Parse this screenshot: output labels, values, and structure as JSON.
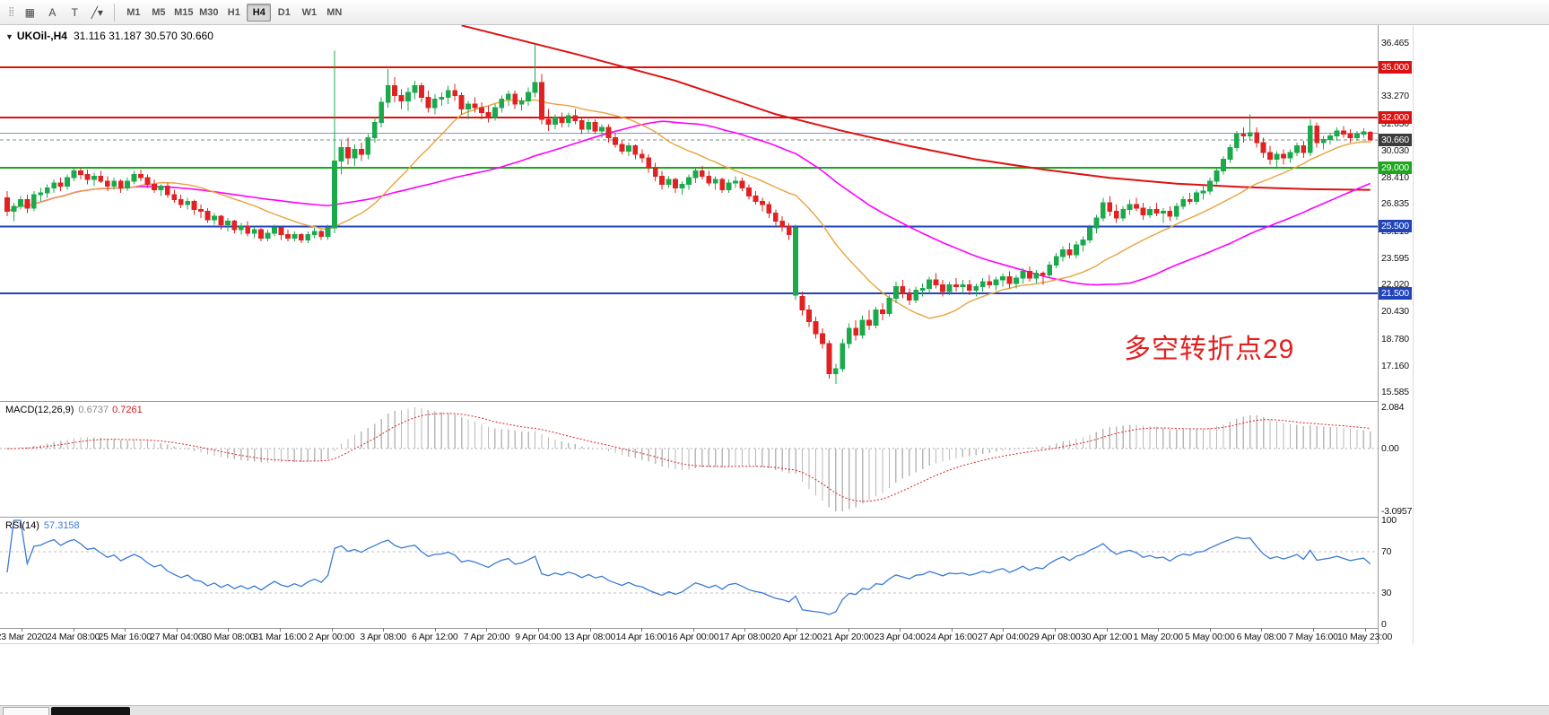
{
  "toolbar": {
    "tools": [
      {
        "name": "toolbar-grip",
        "glyph": "⣿"
      },
      {
        "name": "grid-tool-icon",
        "glyph": "▦"
      },
      {
        "name": "cursor-tool-icon",
        "glyph": "A"
      },
      {
        "name": "text-tool-icon",
        "glyph": "T"
      },
      {
        "name": "shapes-tool-icon",
        "glyph": "╱▾"
      }
    ],
    "timeframes": [
      "M1",
      "M5",
      "M15",
      "M30",
      "H1",
      "H4",
      "D1",
      "W1",
      "MN"
    ],
    "active_timeframe": "H4"
  },
  "chart": {
    "symbol_period": "UKOil-,H4",
    "ohlc": "31.116 31.187 30.570 30.660",
    "collapse_icon": "▼"
  },
  "annotation": {
    "text": "多空转折点29",
    "color": "#e21f1f"
  },
  "indicators": {
    "macd": {
      "name": "MACD(12,26,9)",
      "value_main": "0.6737",
      "value_signal": "0.7261"
    },
    "rsi": {
      "name": "RSI(14)",
      "value": "57.3158"
    }
  },
  "chart_data": {
    "type": "candlestick",
    "symbol": "UKOil-",
    "period": "H4",
    "colors": {
      "up": "#1ba94c",
      "down": "#e02222",
      "ma_fast": "#e8a33d",
      "ma_mid": "#ff00ff",
      "ma_slow": "#dd1111",
      "macd_hist": "#b8b8b8",
      "macd_signal": "#dd2222",
      "rsi": "#3a7bd5"
    },
    "hlines": [
      {
        "price": 35.0,
        "color": "#dd1111",
        "width": 2
      },
      {
        "price": 32.0,
        "color": "#dd1111",
        "width": 2
      },
      {
        "price": 31.05,
        "color": "#7799cc",
        "width": 1
      },
      {
        "price": 30.66,
        "color": "#888888",
        "width": 1,
        "dash": "4,3"
      },
      {
        "price": 29.0,
        "color": "#1ca81c",
        "width": 2
      },
      {
        "price": 25.5,
        "color": "#2244bb",
        "width": 2
      },
      {
        "price": 21.5,
        "color": "#2244bb",
        "width": 2
      }
    ],
    "y_labels": [
      "36.465",
      "33.270",
      "31.650",
      "30.030",
      "28.410",
      "26.835",
      "25.215",
      "23.595",
      "22.020",
      "20.430",
      "18.780",
      "17.160",
      "15.585"
    ],
    "y_badges": [
      {
        "text": "35.000",
        "price": 35.0,
        "bg": "#dd1111"
      },
      {
        "text": "32.000",
        "price": 32.0,
        "bg": "#dd1111"
      },
      {
        "text": "30.660",
        "price": 30.66,
        "bg": "#3c3c3c"
      },
      {
        "text": "29.000",
        "price": 29.0,
        "bg": "#1ca81c"
      },
      {
        "text": "25.500",
        "price": 25.5,
        "bg": "#2244bb"
      },
      {
        "text": "21.500",
        "price": 21.5,
        "bg": "#2244bb"
      }
    ],
    "macd_axis": {
      "max_label": "2.084",
      "zero_label": "0.00",
      "min_label": "-3.0957"
    },
    "rsi_axis": {
      "labels": [
        "100",
        "70",
        "30",
        "0"
      ],
      "values": [
        100,
        70,
        30,
        0
      ],
      "levels": [
        70,
        30
      ]
    },
    "x_labels": [
      "23 Mar 2020",
      "24 Mar 08:00",
      "25 Mar 16:00",
      "27 Mar 04:00",
      "30 Mar 08:00",
      "31 Mar 16:00",
      "2 Apr 00:00",
      "3 Apr 08:00",
      "6 Apr 12:00",
      "7 Apr 20:00",
      "9 Apr 04:00",
      "13 Apr 08:00",
      "14 Apr 16:00",
      "16 Apr 00:00",
      "17 Apr 08:00",
      "20 Apr 12:00",
      "21 Apr 20:00",
      "23 Apr 04:00",
      "24 Apr 16:00",
      "27 Apr 04:00",
      "29 Apr 08:00",
      "30 Apr 12:00",
      "1 May 20:00",
      "5 May 00:00",
      "6 May 08:00",
      "7 May 16:00",
      "10 May 23:00"
    ],
    "ma_red": [
      [
        68,
        37.5
      ],
      [
        85,
        35.8
      ],
      [
        100,
        34.2
      ],
      [
        115,
        32.2
      ],
      [
        125,
        31.2
      ],
      [
        135,
        30.3
      ],
      [
        145,
        29.5
      ],
      [
        155,
        28.9
      ],
      [
        165,
        28.4
      ],
      [
        175,
        28.05
      ],
      [
        185,
        27.85
      ],
      [
        195,
        27.72
      ],
      [
        204,
        27.68
      ]
    ],
    "ma_periods": {
      "fast": 20,
      "mid": 50
    },
    "candles": [
      [
        27.2,
        27.6,
        26.1,
        26.4
      ],
      [
        26.4,
        26.9,
        25.8,
        26.7
      ],
      [
        26.7,
        27.3,
        26.5,
        27.1
      ],
      [
        27.1,
        27.4,
        26.3,
        26.6
      ],
      [
        26.6,
        27.6,
        26.4,
        27.4
      ],
      [
        27.4,
        27.8,
        27.0,
        27.5
      ],
      [
        27.5,
        28.0,
        27.2,
        27.8
      ],
      [
        27.8,
        28.3,
        27.5,
        28.1
      ],
      [
        28.1,
        28.4,
        27.6,
        27.9
      ],
      [
        27.9,
        28.6,
        27.7,
        28.4
      ],
      [
        28.4,
        29.0,
        28.2,
        28.8
      ],
      [
        28.8,
        29.0,
        28.3,
        28.6
      ],
      [
        28.6,
        28.9,
        28.0,
        28.3
      ],
      [
        28.3,
        28.7,
        27.9,
        28.5
      ],
      [
        28.5,
        28.8,
        28.1,
        28.2
      ],
      [
        28.2,
        28.5,
        27.6,
        27.9
      ],
      [
        27.9,
        28.4,
        27.7,
        28.2
      ],
      [
        28.2,
        28.3,
        27.5,
        27.8
      ],
      [
        27.8,
        28.4,
        27.6,
        28.2
      ],
      [
        28.2,
        28.8,
        28.0,
        28.6
      ],
      [
        28.6,
        28.9,
        28.2,
        28.4
      ],
      [
        28.4,
        28.6,
        27.8,
        28.0
      ],
      [
        28.0,
        28.3,
        27.5,
        27.7
      ],
      [
        27.7,
        28.0,
        27.3,
        27.9
      ],
      [
        27.9,
        28.1,
        27.2,
        27.4
      ],
      [
        27.4,
        27.7,
        26.9,
        27.1
      ],
      [
        27.1,
        27.4,
        26.6,
        26.8
      ],
      [
        26.8,
        27.2,
        26.5,
        27.0
      ],
      [
        27.0,
        27.1,
        26.2,
        26.5
      ],
      [
        26.5,
        26.8,
        26.0,
        26.4
      ],
      [
        26.4,
        26.6,
        25.7,
        25.9
      ],
      [
        25.9,
        26.3,
        25.6,
        26.1
      ],
      [
        26.1,
        26.2,
        25.3,
        25.6
      ],
      [
        25.6,
        26.0,
        25.2,
        25.8
      ],
      [
        25.8,
        25.9,
        25.1,
        25.3
      ],
      [
        25.3,
        25.7,
        25.0,
        25.5
      ],
      [
        25.5,
        25.8,
        24.9,
        25.1
      ],
      [
        25.1,
        25.5,
        24.8,
        25.3
      ],
      [
        25.3,
        25.4,
        24.6,
        24.8
      ],
      [
        24.8,
        25.3,
        24.6,
        25.1
      ],
      [
        25.1,
        25.6,
        24.9,
        25.4
      ],
      [
        25.4,
        25.5,
        24.7,
        25.0
      ],
      [
        25.0,
        25.3,
        24.6,
        24.8
      ],
      [
        24.8,
        25.2,
        24.6,
        25.0
      ],
      [
        25.0,
        25.1,
        24.5,
        24.7
      ],
      [
        24.7,
        25.2,
        24.5,
        25.0
      ],
      [
        25.0,
        25.4,
        24.8,
        25.2
      ],
      [
        25.2,
        25.3,
        24.7,
        24.9
      ],
      [
        24.9,
        25.6,
        24.7,
        25.4
      ],
      [
        25.4,
        36.0,
        25.1,
        29.4
      ],
      [
        29.4,
        30.6,
        28.6,
        30.2
      ],
      [
        30.2,
        30.8,
        29.2,
        29.6
      ],
      [
        29.6,
        30.4,
        29.1,
        30.1
      ],
      [
        30.1,
        30.5,
        29.4,
        29.8
      ],
      [
        29.8,
        31.0,
        29.5,
        30.8
      ],
      [
        30.8,
        32.0,
        30.5,
        31.7
      ],
      [
        31.7,
        33.2,
        31.4,
        32.9
      ],
      [
        32.9,
        34.9,
        32.6,
        33.9
      ],
      [
        33.9,
        34.4,
        32.9,
        33.3
      ],
      [
        33.3,
        33.7,
        32.5,
        33.0
      ],
      [
        33.0,
        33.8,
        32.4,
        33.5
      ],
      [
        33.5,
        34.2,
        33.1,
        33.9
      ],
      [
        33.9,
        34.1,
        32.9,
        33.2
      ],
      [
        33.2,
        33.6,
        32.3,
        32.6
      ],
      [
        32.6,
        33.4,
        32.2,
        33.1
      ],
      [
        33.1,
        33.5,
        32.7,
        33.2
      ],
      [
        33.2,
        33.9,
        32.8,
        33.6
      ],
      [
        33.6,
        34.0,
        33.0,
        33.3
      ],
      [
        33.3,
        33.5,
        32.2,
        32.5
      ],
      [
        32.5,
        33.0,
        31.9,
        32.8
      ],
      [
        32.8,
        33.2,
        32.3,
        32.6
      ],
      [
        32.6,
        32.9,
        31.9,
        32.3
      ],
      [
        32.3,
        32.7,
        31.7,
        32.0
      ],
      [
        32.0,
        32.8,
        31.8,
        32.6
      ],
      [
        32.6,
        33.3,
        32.3,
        33.1
      ],
      [
        33.1,
        33.6,
        32.7,
        33.4
      ],
      [
        33.4,
        33.6,
        32.5,
        32.8
      ],
      [
        32.8,
        33.2,
        32.4,
        33.0
      ],
      [
        33.0,
        33.8,
        32.7,
        33.5
      ],
      [
        33.5,
        36.4,
        33.2,
        34.1
      ],
      [
        34.1,
        34.6,
        31.6,
        31.9
      ],
      [
        31.9,
        32.5,
        31.2,
        31.6
      ],
      [
        31.6,
        32.2,
        31.3,
        32.0
      ],
      [
        32.0,
        32.3,
        31.4,
        31.7
      ],
      [
        31.7,
        32.3,
        31.4,
        32.1
      ],
      [
        32.1,
        32.5,
        31.6,
        31.8
      ],
      [
        31.8,
        32.0,
        31.0,
        31.3
      ],
      [
        31.3,
        31.9,
        31.1,
        31.7
      ],
      [
        31.7,
        31.9,
        31.0,
        31.2
      ],
      [
        31.2,
        31.6,
        30.8,
        31.4
      ],
      [
        31.4,
        31.6,
        30.5,
        30.8
      ],
      [
        30.8,
        31.1,
        30.2,
        30.4
      ],
      [
        30.4,
        30.7,
        29.8,
        30.0
      ],
      [
        30.0,
        30.5,
        29.7,
        30.3
      ],
      [
        30.3,
        30.4,
        29.5,
        29.8
      ],
      [
        29.8,
        30.1,
        29.3,
        29.6
      ],
      [
        29.6,
        29.8,
        28.7,
        29.0
      ],
      [
        29.0,
        29.3,
        28.2,
        28.5
      ],
      [
        28.5,
        28.8,
        27.7,
        28.0
      ],
      [
        28.0,
        28.5,
        27.8,
        28.3
      ],
      [
        28.3,
        28.4,
        27.5,
        27.8
      ],
      [
        27.8,
        28.2,
        27.4,
        28.0
      ],
      [
        28.0,
        28.6,
        27.7,
        28.4
      ],
      [
        28.4,
        29.0,
        28.1,
        28.8
      ],
      [
        28.8,
        29.1,
        28.3,
        28.5
      ],
      [
        28.5,
        28.8,
        27.9,
        28.1
      ],
      [
        28.1,
        28.5,
        27.7,
        28.3
      ],
      [
        28.3,
        28.4,
        27.5,
        27.7
      ],
      [
        27.7,
        28.3,
        27.5,
        28.1
      ],
      [
        28.1,
        28.5,
        27.8,
        28.2
      ],
      [
        28.2,
        28.4,
        27.6,
        27.8
      ],
      [
        27.8,
        28.0,
        27.1,
        27.3
      ],
      [
        27.3,
        27.6,
        26.8,
        27.0
      ],
      [
        27.0,
        27.2,
        26.4,
        26.8
      ],
      [
        26.8,
        27.0,
        26.0,
        26.3
      ],
      [
        26.3,
        26.5,
        25.5,
        25.8
      ],
      [
        25.8,
        26.1,
        25.2,
        25.5
      ],
      [
        25.5,
        25.7,
        24.7,
        25.0
      ],
      [
        21.4,
        25.6,
        21.1,
        25.4
      ],
      [
        21.3,
        21.6,
        20.2,
        20.5
      ],
      [
        20.5,
        20.8,
        19.5,
        19.8
      ],
      [
        19.8,
        20.1,
        18.8,
        19.1
      ],
      [
        19.1,
        19.4,
        18.2,
        18.5
      ],
      [
        18.5,
        18.7,
        16.4,
        16.7
      ],
      [
        16.7,
        17.3,
        16.1,
        17.0
      ],
      [
        17.0,
        18.8,
        16.8,
        18.5
      ],
      [
        18.5,
        19.7,
        18.2,
        19.4
      ],
      [
        19.4,
        19.9,
        18.7,
        19.0
      ],
      [
        19.0,
        20.2,
        18.8,
        19.9
      ],
      [
        19.9,
        20.5,
        19.3,
        19.6
      ],
      [
        19.6,
        20.7,
        19.4,
        20.5
      ],
      [
        20.5,
        20.9,
        19.9,
        20.3
      ],
      [
        20.3,
        21.4,
        20.1,
        21.2
      ],
      [
        21.2,
        22.2,
        20.9,
        21.9
      ],
      [
        21.9,
        22.3,
        21.2,
        21.5
      ],
      [
        21.5,
        21.8,
        20.8,
        21.1
      ],
      [
        21.1,
        21.9,
        20.9,
        21.7
      ],
      [
        21.7,
        22.1,
        21.3,
        21.8
      ],
      [
        21.8,
        22.5,
        21.5,
        22.3
      ],
      [
        22.3,
        22.7,
        21.8,
        22.0
      ],
      [
        22.0,
        22.3,
        21.3,
        21.6
      ],
      [
        21.6,
        22.2,
        21.4,
        22.0
      ],
      [
        22.0,
        22.4,
        21.6,
        21.9
      ],
      [
        21.9,
        22.3,
        21.5,
        22.0
      ],
      [
        22.0,
        22.3,
        21.4,
        21.7
      ],
      [
        21.7,
        22.1,
        21.3,
        21.9
      ],
      [
        21.9,
        22.4,
        21.6,
        22.2
      ],
      [
        22.2,
        22.6,
        21.8,
        22.0
      ],
      [
        22.0,
        22.5,
        21.7,
        22.3
      ],
      [
        22.3,
        22.7,
        21.9,
        22.5
      ],
      [
        22.5,
        22.8,
        21.8,
        22.1
      ],
      [
        22.1,
        22.6,
        21.8,
        22.4
      ],
      [
        22.4,
        23.0,
        22.1,
        22.8
      ],
      [
        22.8,
        23.1,
        22.2,
        22.4
      ],
      [
        22.4,
        22.9,
        22.1,
        22.7
      ],
      [
        22.7,
        22.8,
        22.0,
        22.6
      ],
      [
        22.6,
        23.4,
        22.4,
        23.2
      ],
      [
        23.2,
        23.9,
        23.0,
        23.7
      ],
      [
        23.7,
        24.3,
        23.4,
        24.1
      ],
      [
        24.1,
        24.5,
        23.6,
        23.8
      ],
      [
        23.8,
        24.6,
        23.6,
        24.4
      ],
      [
        24.4,
        24.9,
        24.0,
        24.7
      ],
      [
        24.7,
        25.6,
        24.5,
        25.4
      ],
      [
        25.4,
        26.2,
        25.1,
        26.0
      ],
      [
        26.0,
        27.2,
        25.8,
        26.9
      ],
      [
        26.9,
        27.3,
        26.1,
        26.4
      ],
      [
        26.4,
        26.8,
        25.7,
        26.0
      ],
      [
        26.0,
        26.7,
        25.8,
        26.5
      ],
      [
        26.5,
        27.1,
        26.2,
        26.8
      ],
      [
        26.8,
        27.2,
        26.4,
        26.6
      ],
      [
        26.6,
        26.9,
        25.9,
        26.2
      ],
      [
        26.2,
        26.7,
        26.0,
        26.5
      ],
      [
        26.5,
        26.9,
        26.1,
        26.3
      ],
      [
        26.3,
        26.6,
        25.7,
        26.4
      ],
      [
        26.4,
        26.7,
        25.8,
        26.1
      ],
      [
        26.1,
        26.9,
        25.9,
        26.7
      ],
      [
        26.7,
        27.3,
        26.5,
        27.1
      ],
      [
        27.1,
        27.5,
        26.8,
        27.0
      ],
      [
        27.0,
        27.7,
        26.8,
        27.5
      ],
      [
        27.5,
        27.9,
        27.1,
        27.6
      ],
      [
        27.6,
        28.4,
        27.4,
        28.2
      ],
      [
        28.2,
        29.0,
        28.0,
        28.8
      ],
      [
        28.8,
        29.7,
        28.6,
        29.5
      ],
      [
        29.5,
        30.4,
        29.3,
        30.2
      ],
      [
        30.2,
        31.2,
        30.0,
        31.0
      ],
      [
        31.0,
        31.4,
        30.5,
        30.9
      ],
      [
        30.9,
        32.2,
        30.6,
        31.1
      ],
      [
        31.1,
        31.4,
        30.2,
        30.5
      ],
      [
        30.5,
        30.8,
        29.6,
        29.9
      ],
      [
        29.9,
        30.3,
        29.2,
        29.5
      ],
      [
        29.5,
        30.0,
        29.0,
        29.8
      ],
      [
        29.8,
        30.1,
        29.2,
        29.6
      ],
      [
        29.6,
        30.1,
        29.3,
        29.9
      ],
      [
        29.9,
        30.5,
        29.7,
        30.3
      ],
      [
        30.3,
        30.6,
        29.6,
        29.9
      ],
      [
        29.9,
        31.9,
        29.7,
        31.5
      ],
      [
        31.5,
        31.7,
        30.2,
        30.5
      ],
      [
        30.5,
        30.9,
        30.1,
        30.7
      ],
      [
        30.7,
        31.1,
        30.4,
        30.9
      ],
      [
        30.9,
        31.4,
        30.6,
        31.2
      ],
      [
        31.2,
        31.5,
        30.8,
        31.0
      ],
      [
        31.0,
        31.3,
        30.5,
        30.8
      ],
      [
        30.8,
        31.2,
        30.6,
        31.0
      ],
      [
        31.0,
        31.35,
        30.8,
        31.15
      ],
      [
        31.116,
        31.187,
        30.57,
        30.66
      ]
    ]
  }
}
